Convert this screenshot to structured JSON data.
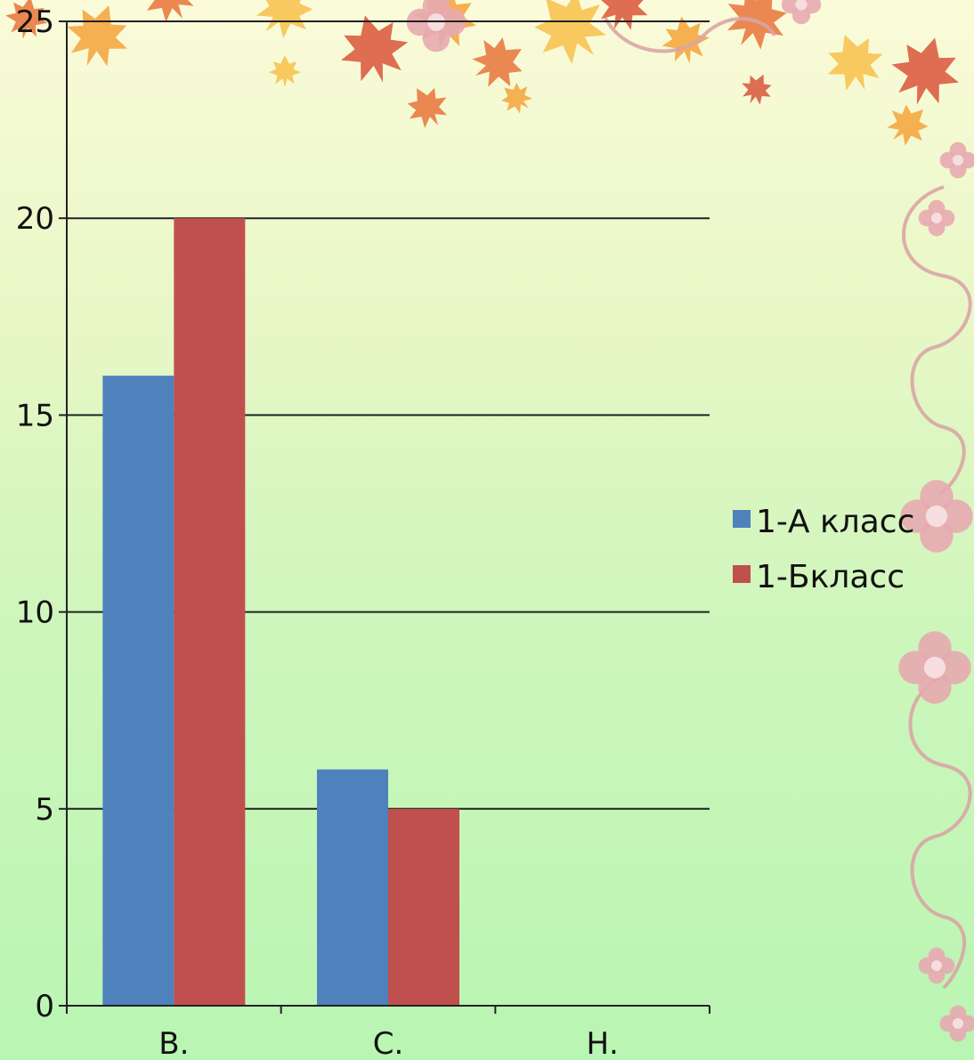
{
  "chart_data": {
    "type": "bar",
    "categories": [
      "В.",
      "С.",
      "Н."
    ],
    "series": [
      {
        "name": "1-А класс",
        "values": [
          16,
          6,
          0
        ],
        "color": "#4f81bd"
      },
      {
        "name": "1-Бкласс",
        "values": [
          20,
          5,
          0
        ],
        "color": "#c0504d"
      }
    ],
    "ylim": [
      0,
      25
    ],
    "yticks": [
      0,
      5,
      10,
      15,
      20,
      25
    ],
    "grid": true,
    "legend_position": "right",
    "title": "",
    "xlabel": "",
    "ylabel": ""
  },
  "decoration": {
    "leaf_colors": [
      "#f4a23a",
      "#e8733a",
      "#f7c04a",
      "#d9533a"
    ],
    "swirl_color": "#d9a5a5",
    "flower_color": "#e7aab0"
  }
}
